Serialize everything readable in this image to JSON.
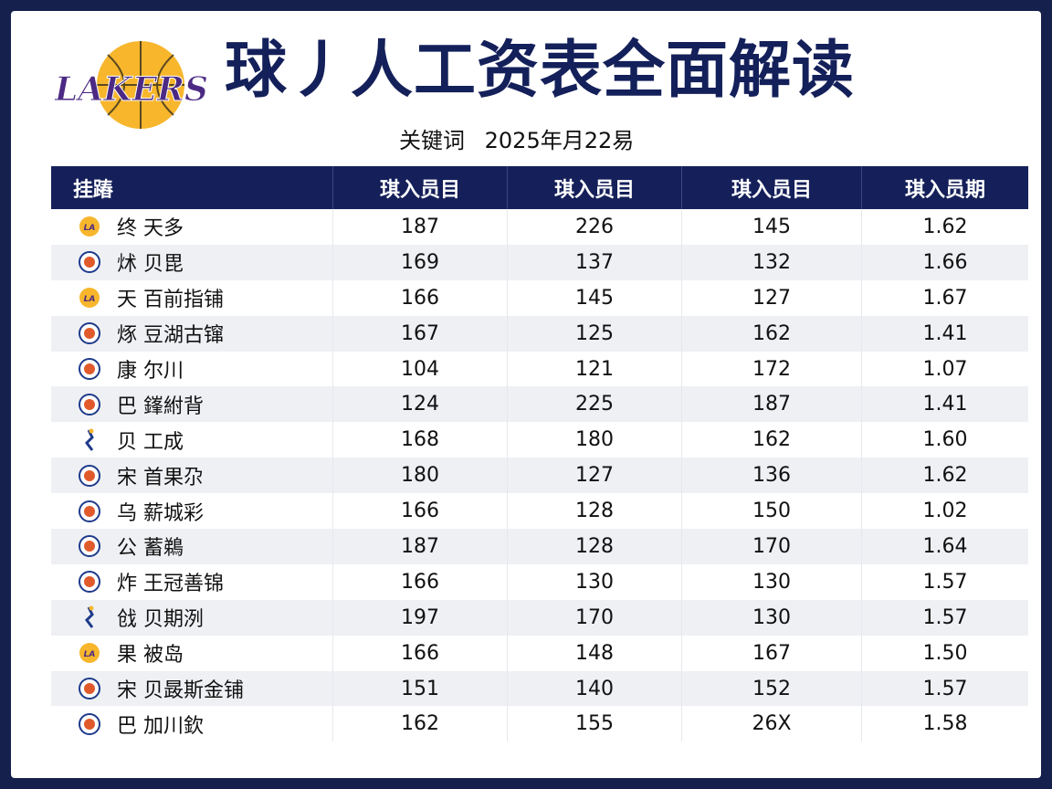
{
  "header": {
    "logo_text": "LAKERS",
    "title": "球丿人工资表全面解读",
    "subtitle_keyword": "关键词",
    "subtitle_date": "2025年月22易"
  },
  "colors": {
    "navy": "#15205a",
    "gold": "#f7b62c",
    "purple": "#4c2a84"
  },
  "table": {
    "headers": [
      "挂蹖",
      "琪入员目",
      "琪入员目",
      "琪入员目",
      "琪入员期"
    ],
    "rows": [
      {
        "icon": "lakers-logo-icon",
        "team": "终 天多",
        "v1": "187",
        "v2": "226",
        "v3": "145",
        "v4": "1.62"
      },
      {
        "icon": "team-logo-icon",
        "team": "炢 贝毘",
        "v1": "169",
        "v2": "137",
        "v3": "132",
        "v4": "1.66"
      },
      {
        "icon": "lakers-logo-icon",
        "team": "天 百前指铺",
        "v1": "166",
        "v2": "145",
        "v3": "127",
        "v4": "1.67"
      },
      {
        "icon": "team-logo-icon",
        "team": "烼 豆湖古镩",
        "v1": "167",
        "v2": "125",
        "v3": "162",
        "v4": "1.41"
      },
      {
        "icon": "team-logo-icon",
        "team": "康 尔川",
        "v1": "104",
        "v2": "121",
        "v3": "172",
        "v4": "1.07"
      },
      {
        "icon": "team-logo-icon",
        "team": "巴 鎽紨背",
        "v1": "124",
        "v2": "225",
        "v3": "187",
        "v4": "1.41"
      },
      {
        "icon": "player-logo-icon",
        "team": "贝 工成",
        "v1": "168",
        "v2": "180",
        "v3": "162",
        "v4": "1.60"
      },
      {
        "icon": "team-logo-icon",
        "team": "宋 首果尕",
        "v1": "180",
        "v2": "127",
        "v3": "136",
        "v4": "1.62"
      },
      {
        "icon": "team-logo-icon",
        "team": "乌 薪城彩",
        "v1": "166",
        "v2": "128",
        "v3": "150",
        "v4": "1.02"
      },
      {
        "icon": "team-logo-icon",
        "team": "公 蓄鵜",
        "v1": "187",
        "v2": "128",
        "v3": "170",
        "v4": "1.64"
      },
      {
        "icon": "team-logo-icon",
        "team": "炸 王冠善锦",
        "v1": "166",
        "v2": "130",
        "v3": "130",
        "v4": "1.57"
      },
      {
        "icon": "player-logo-icon",
        "team": "戗 贝期洌",
        "v1": "197",
        "v2": "170",
        "v3": "130",
        "v4": "1.57"
      },
      {
        "icon": "lakers-logo-icon",
        "team": "果 被岛",
        "v1": "166",
        "v2": "148",
        "v3": "167",
        "v4": "1.50"
      },
      {
        "icon": "team-logo-icon",
        "team": "宋 贝晸斯金铺",
        "v1": "151",
        "v2": "140",
        "v3": "152",
        "v4": "1.57"
      },
      {
        "icon": "team-logo-icon",
        "team": "巴 加川欽",
        "v1": "162",
        "v2": "155",
        "v3": "26X",
        "v4": "1.58"
      }
    ]
  }
}
